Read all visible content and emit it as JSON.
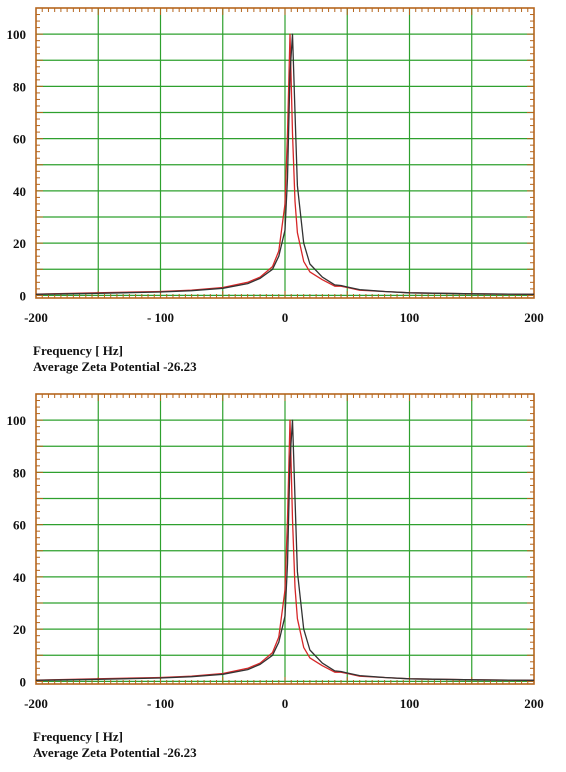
{
  "chart_data": [
    {
      "type": "line",
      "xlabel": "Frequency [ Hz]",
      "subtitle": "Average Zeta Potential -26.23",
      "x_ticks": [
        "-200",
        "- 100",
        "0",
        "100",
        "200"
      ],
      "x_tick_values": [
        -200,
        -100,
        0,
        100,
        200
      ],
      "y_ticks": [
        "0",
        "20",
        "40",
        "60",
        "80",
        "100"
      ],
      "y_tick_values": [
        0,
        20,
        40,
        60,
        80,
        100
      ],
      "xlim": [
        -200,
        200
      ],
      "ylim": [
        -1,
        110
      ],
      "grid": true,
      "colors": {
        "frame": "#b5651d",
        "grid": "#2ea02e",
        "tick": "#b5651d"
      },
      "series": [
        {
          "color": "#d62728",
          "x": [
            -200,
            -150,
            -100,
            -75,
            -50,
            -30,
            -20,
            -10,
            -5,
            0,
            2,
            4,
            6,
            8,
            10,
            15,
            20,
            30,
            40,
            45,
            50,
            60,
            80,
            100,
            150,
            200
          ],
          "y": [
            0.5,
            1,
            1.5,
            2,
            3,
            5,
            7,
            11,
            17,
            35,
            62,
            100,
            62,
            36,
            24,
            13,
            9,
            6,
            3.5,
            3.5,
            3,
            2,
            1.5,
            1,
            0.6,
            0.4
          ]
        },
        {
          "color": "#333333",
          "x": [
            -200,
            -150,
            -100,
            -75,
            -50,
            -30,
            -20,
            -10,
            -5,
            0,
            2,
            4,
            6,
            8,
            10,
            15,
            20,
            30,
            40,
            45,
            50,
            60,
            80,
            100,
            150,
            200
          ],
          "y": [
            0.4,
            0.8,
            1.3,
            1.8,
            2.7,
            4.5,
            6.5,
            10,
            15,
            25,
            45,
            85,
            100,
            70,
            42,
            20,
            12,
            7,
            4,
            3.8,
            3.2,
            2.2,
            1.5,
            1,
            0.6,
            0.4
          ]
        }
      ]
    },
    {
      "type": "line",
      "xlabel": "Frequency [ Hz]",
      "subtitle": "Average Zeta Potential -26.23",
      "x_ticks": [
        "-200",
        "- 100",
        "0",
        "100",
        "200"
      ],
      "x_tick_values": [
        -200,
        -100,
        0,
        100,
        200
      ],
      "y_ticks": [
        "0",
        "20",
        "40",
        "60",
        "80",
        "100"
      ],
      "y_tick_values": [
        0,
        20,
        40,
        60,
        80,
        100
      ],
      "xlim": [
        -200,
        200
      ],
      "ylim": [
        -1,
        110
      ],
      "grid": true,
      "colors": {
        "frame": "#b5651d",
        "grid": "#2ea02e",
        "tick": "#b5651d"
      },
      "series": [
        {
          "color": "#d62728",
          "x": [
            -200,
            -150,
            -100,
            -75,
            -50,
            -30,
            -20,
            -10,
            -5,
            0,
            2,
            4,
            6,
            8,
            10,
            15,
            20,
            30,
            40,
            45,
            50,
            60,
            80,
            100,
            150,
            200
          ],
          "y": [
            0.5,
            1,
            1.5,
            2,
            3,
            5,
            7,
            11,
            17,
            35,
            62,
            100,
            62,
            36,
            24,
            13,
            9,
            6,
            3.5,
            3.5,
            3,
            2,
            1.5,
            1,
            0.6,
            0.4
          ]
        },
        {
          "color": "#333333",
          "x": [
            -200,
            -150,
            -100,
            -75,
            -50,
            -30,
            -20,
            -10,
            -5,
            0,
            2,
            4,
            6,
            8,
            10,
            15,
            20,
            30,
            40,
            45,
            50,
            60,
            80,
            100,
            150,
            200
          ],
          "y": [
            0.4,
            0.8,
            1.3,
            1.8,
            2.7,
            4.5,
            6.5,
            10,
            15,
            25,
            45,
            85,
            100,
            70,
            42,
            20,
            12,
            7,
            4,
            3.8,
            3.2,
            2.2,
            1.5,
            1,
            0.6,
            0.4
          ]
        }
      ]
    }
  ]
}
